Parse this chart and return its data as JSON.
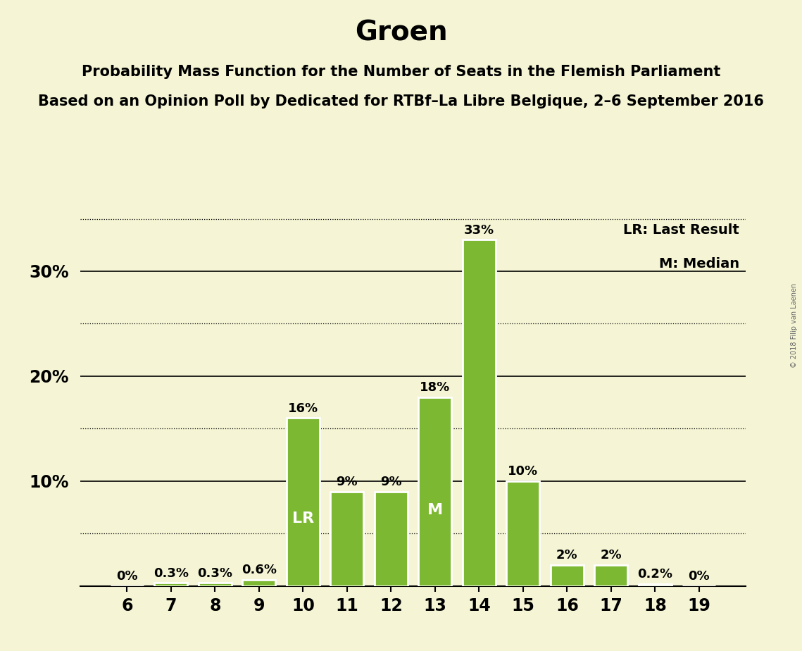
{
  "title": "Groen",
  "subtitle1": "Probability Mass Function for the Number of Seats in the Flemish Parliament",
  "subtitle2": "Based on an Opinion Poll by Dedicated for RTBf–La Libre Belgique, 2–6 September 2016",
  "watermark": "© 2018 Filip van Laenen",
  "legend_lr": "LR: Last Result",
  "legend_m": "M: Median",
  "categories": [
    6,
    7,
    8,
    9,
    10,
    11,
    12,
    13,
    14,
    15,
    16,
    17,
    18,
    19
  ],
  "values": [
    0.0,
    0.3,
    0.3,
    0.6,
    16.0,
    9.0,
    9.0,
    18.0,
    33.0,
    10.0,
    2.0,
    2.0,
    0.2,
    0.0
  ],
  "labels": [
    "0%",
    "0.3%",
    "0.3%",
    "0.6%",
    "16%",
    "9%",
    "9%",
    "18%",
    "33%",
    "10%",
    "2%",
    "2%",
    "0.2%",
    "0%"
  ],
  "bar_color": "#7db832",
  "lr_index": 4,
  "m_index": 7,
  "lr_label": "LR",
  "m_label": "M",
  "background_color": "#f5f5d5",
  "ylim_max": 36,
  "solid_lines": [
    10,
    20,
    30
  ],
  "dotted_lines": [
    5,
    15,
    25,
    35
  ],
  "title_fontsize": 28,
  "subtitle_fontsize": 15,
  "label_fontsize": 13,
  "tick_fontsize": 17,
  "bar_width": 0.75,
  "inner_label_fontsize": 16
}
